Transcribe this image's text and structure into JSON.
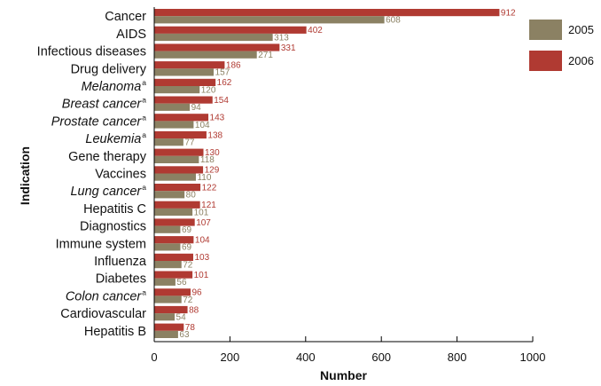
{
  "chart_data": {
    "type": "bar",
    "orientation": "horizontal",
    "xlabel": "Number",
    "ylabel": "Indication",
    "xlim": [
      0,
      1000
    ],
    "xticks": [
      0,
      200,
      400,
      600,
      800,
      1000
    ],
    "grid": false,
    "legend_position": "top-right",
    "footnote_marker": "a",
    "categories": [
      {
        "label": "Cancer",
        "italic": false,
        "footnote": false
      },
      {
        "label": "AIDS",
        "italic": false,
        "footnote": false
      },
      {
        "label": "Infectious diseases",
        "italic": false,
        "footnote": false
      },
      {
        "label": "Drug delivery",
        "italic": false,
        "footnote": false
      },
      {
        "label": "Melanoma",
        "italic": true,
        "footnote": true
      },
      {
        "label": "Breast cancer",
        "italic": true,
        "footnote": true
      },
      {
        "label": "Prostate cancer",
        "italic": true,
        "footnote": true
      },
      {
        "label": "Leukemia",
        "italic": true,
        "footnote": true
      },
      {
        "label": "Gene therapy",
        "italic": false,
        "footnote": false
      },
      {
        "label": "Vaccines",
        "italic": false,
        "footnote": false
      },
      {
        "label": "Lung cancer",
        "italic": true,
        "footnote": true
      },
      {
        "label": "Hepatitis C",
        "italic": false,
        "footnote": false
      },
      {
        "label": "Diagnostics",
        "italic": false,
        "footnote": false
      },
      {
        "label": "Immune system",
        "italic": false,
        "footnote": false
      },
      {
        "label": "Influenza",
        "italic": false,
        "footnote": false
      },
      {
        "label": "Diabetes",
        "italic": false,
        "footnote": false
      },
      {
        "label": "Colon cancer",
        "italic": true,
        "footnote": true
      },
      {
        "label": "Cardiovascular",
        "italic": false,
        "footnote": false
      },
      {
        "label": "Hepatitis B",
        "italic": false,
        "footnote": false
      }
    ],
    "series": [
      {
        "name": "2006",
        "color": "#b03a32",
        "values": [
          912,
          402,
          331,
          186,
          162,
          154,
          143,
          138,
          130,
          129,
          122,
          121,
          107,
          104,
          103,
          101,
          96,
          88,
          78
        ]
      },
      {
        "name": "2005",
        "color": "#8b8163",
        "values": [
          608,
          313,
          271,
          157,
          120,
          94,
          104,
          77,
          118,
          110,
          80,
          101,
          69,
          69,
          72,
          56,
          72,
          54,
          63
        ]
      }
    ],
    "legend_order": [
      "2005",
      "2006"
    ]
  }
}
